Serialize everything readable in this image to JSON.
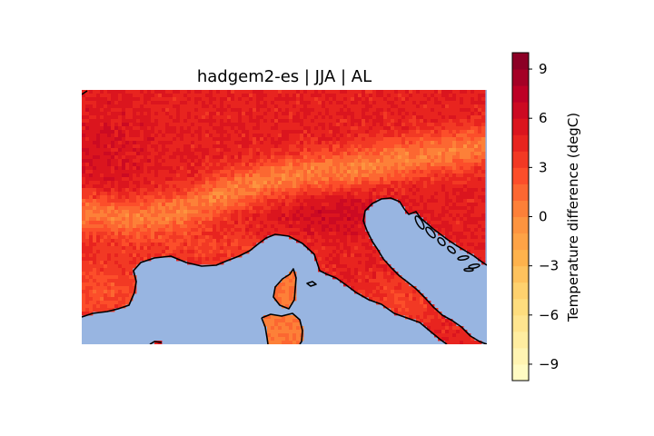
{
  "figure": {
    "title": "hadgem2-es | JJA | AL"
  },
  "map": {
    "ocean_color": "#98b5e1",
    "coastline_color": "#000000",
    "region": "Northern Italy / Alps / Adriatic"
  },
  "colorbar": {
    "label": "Temperature difference (degC)",
    "colormap": "YlOrRd",
    "range": [
      -10,
      10
    ],
    "levels": 20,
    "ticks": [
      9,
      6,
      3,
      0,
      -3,
      -6,
      -9
    ],
    "tick_labels": [
      "9",
      "6",
      "3",
      "0",
      "−3",
      "−6",
      "−9"
    ]
  },
  "chart_data": {
    "type": "heatmap",
    "title": "hadgem2-es | JJA | AL",
    "colorbar_label": "Temperature difference (degC)",
    "vmin": -10,
    "vmax": 10,
    "colorbar_ticks": [
      9,
      6,
      3,
      0,
      -3,
      -6,
      -9
    ],
    "colormap": "YlOrRd"
  }
}
